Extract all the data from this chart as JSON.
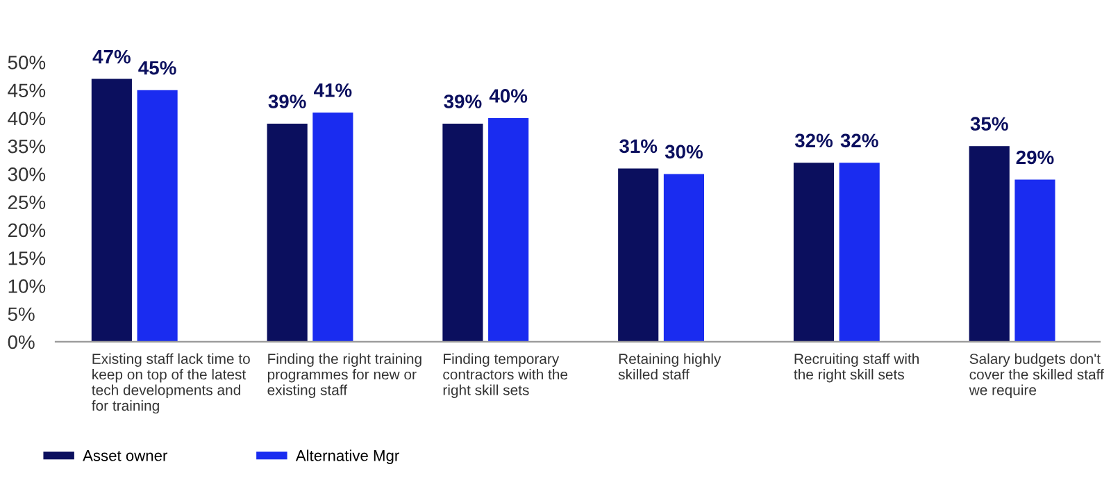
{
  "chart_data": {
    "type": "bar",
    "categories": [
      "Existing staff lack time to\nkeep on top of the latest\ntech developments and\nfor training",
      "Finding the right training\nprogrammes for new or\nexisting staff",
      "Finding temporary\ncontractors with the\nright skill sets",
      "Retaining highly\nskilled staff",
      "Recruiting staff with\nthe right skill sets",
      "Salary budgets don't\ncover the skilled staff\nwe require"
    ],
    "series": [
      {
        "name": "Asset owner",
        "color": "#0b0f5e",
        "values": [
          47,
          39,
          39,
          31,
          32,
          35
        ],
        "value_labels": [
          "47%",
          "39%",
          "39%",
          "31%",
          "32%",
          "35%"
        ]
      },
      {
        "name": "Alternative Mgr",
        "color": "#1a2cf0",
        "values": [
          45,
          41,
          40,
          30,
          32,
          29
        ],
        "value_labels": [
          "45%",
          "41%",
          "40%",
          "30%",
          "32%",
          "29%"
        ]
      }
    ],
    "ylim": [
      0,
      50
    ],
    "yticks": [
      {
        "value": 0,
        "label": "0%"
      },
      {
        "value": 5,
        "label": "5%"
      },
      {
        "value": 10,
        "label": "10%"
      },
      {
        "value": 15,
        "label": "15%"
      },
      {
        "value": 20,
        "label": "20%"
      },
      {
        "value": 25,
        "label": "25%"
      },
      {
        "value": 30,
        "label": "30%"
      },
      {
        "value": 35,
        "label": "35%"
      },
      {
        "value": 40,
        "label": "40%"
      },
      {
        "value": 45,
        "label": "45%"
      },
      {
        "value": 50,
        "label": "50%"
      }
    ],
    "grid": false,
    "legend": "bottom left"
  }
}
